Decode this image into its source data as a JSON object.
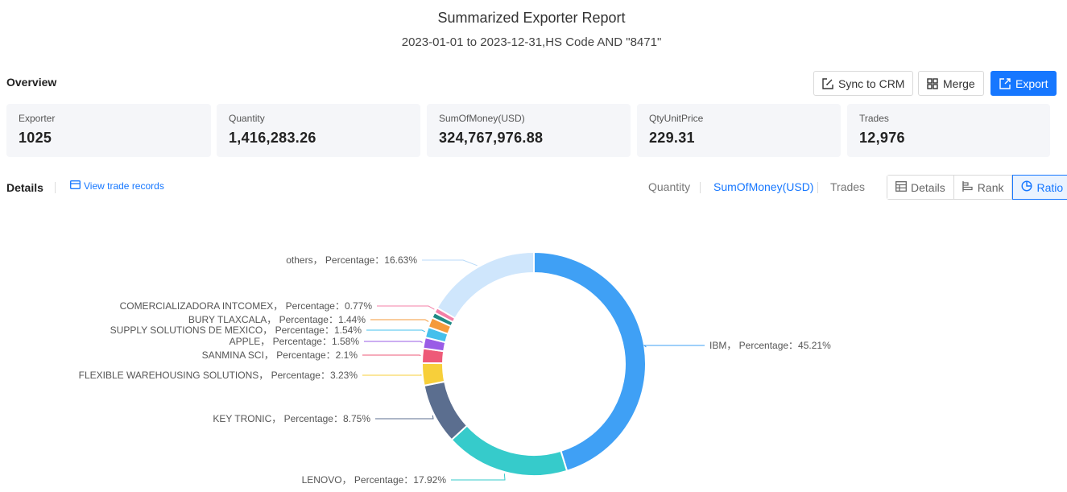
{
  "header": {
    "title": "Summarized Exporter Report",
    "subtitle": "2023-01-01 to 2023-12-31,HS Code AND \"8471\""
  },
  "overview": {
    "label": "Overview",
    "buttons": {
      "sync": "Sync to CRM",
      "merge": "Merge",
      "export": "Export"
    },
    "stats": [
      {
        "label": "Exporter",
        "value": "1025"
      },
      {
        "label": "Quantity",
        "value": "1,416,283.26"
      },
      {
        "label": "SumOfMoney(USD)",
        "value": "324,767,976.88"
      },
      {
        "label": "QtyUnitPrice",
        "value": "229.31"
      },
      {
        "label": "Trades",
        "value": "12,976"
      }
    ]
  },
  "details": {
    "label": "Details",
    "view_records": "View trade records",
    "metric_tabs": [
      "Quantity",
      "SumOfMoney(USD)",
      "Trades"
    ],
    "active_metric": "SumOfMoney(USD)",
    "views": [
      "Details",
      "Rank",
      "Ratio"
    ],
    "active_view": "Ratio"
  },
  "colors": {
    "accent": "#1677ff"
  },
  "chart_data": {
    "type": "pie",
    "variant": "donut",
    "label_template": "{name}， Percentage：{value}%",
    "series": [
      {
        "name": "IBM",
        "value": 45.21,
        "color": "#3fa0f5"
      },
      {
        "name": "LENOVO",
        "value": 17.92,
        "color": "#36cbcb"
      },
      {
        "name": "KEY TRONIC",
        "value": 8.75,
        "color": "#5b6e8f"
      },
      {
        "name": "FLEXIBLE WAREHOUSING SOLUTIONS",
        "value": 3.23,
        "color": "#f7cf3a"
      },
      {
        "name": "SANMINA SCI",
        "value": 2.1,
        "color": "#ee5a78"
      },
      {
        "name": "APPLE",
        "value": 1.58,
        "color": "#9a5ce6"
      },
      {
        "name": "SUPPLY SOLUTIONS DE MEXICO",
        "value": 1.54,
        "color": "#45c0ec"
      },
      {
        "name": "BURY TLAXCALA",
        "value": 1.44,
        "color": "#f59a3a"
      },
      {
        "name": "",
        "value": 0.8,
        "color": "#1f8a85"
      },
      {
        "name": "COMERCIALIZADORA INTCOMEX",
        "value": 0.77,
        "color": "#f47fa7"
      },
      {
        "name": "others",
        "value": 16.63,
        "color": "#cfe6fc"
      }
    ]
  }
}
